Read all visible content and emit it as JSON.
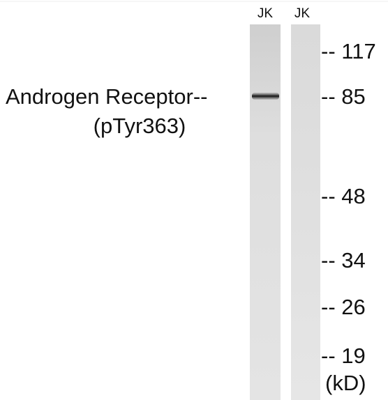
{
  "lanes": [
    "JK",
    "JK"
  ],
  "protein_label": [
    "Androgen Receptor--",
    "(pTyr363)"
  ],
  "markers": [
    "-- 117",
    "-- 85",
    "-- 48",
    "-- 34",
    "-- 26",
    "-- 19"
  ],
  "unit": "(kD)"
}
